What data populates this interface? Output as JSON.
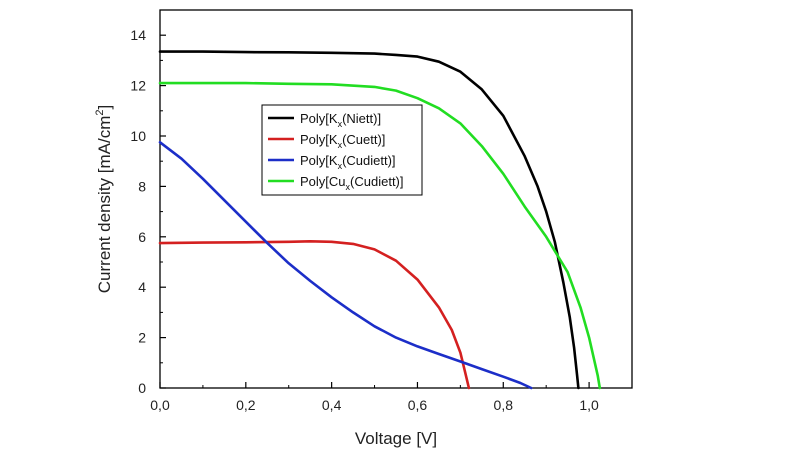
{
  "chart_data": {
    "type": "line",
    "xlabel": "Voltage [V]",
    "ylabel": "Current density [mA/cm²]",
    "xlim": [
      0.0,
      1.1
    ],
    "ylim": [
      0,
      15
    ],
    "x_ticks": [
      "0,0",
      "0,2",
      "0,4",
      "0,6",
      "0,8",
      "1,0"
    ],
    "y_ticks": [
      "0",
      "2",
      "4",
      "6",
      "8",
      "10",
      "12",
      "14"
    ],
    "grid": false,
    "legend_placement": "center-left",
    "series": [
      {
        "name": "Poly[Kx(Niett)]",
        "legend": {
          "pre": "Poly[K",
          "sub": "x",
          "post": "(Niett)]"
        },
        "color": "#000000",
        "points": [
          [
            0.0,
            13.35
          ],
          [
            0.1,
            13.35
          ],
          [
            0.2,
            13.33
          ],
          [
            0.3,
            13.32
          ],
          [
            0.4,
            13.3
          ],
          [
            0.5,
            13.27
          ],
          [
            0.55,
            13.22
          ],
          [
            0.6,
            13.15
          ],
          [
            0.65,
            12.95
          ],
          [
            0.7,
            12.55
          ],
          [
            0.75,
            11.85
          ],
          [
            0.8,
            10.8
          ],
          [
            0.85,
            9.2
          ],
          [
            0.88,
            8.0
          ],
          [
            0.9,
            7.0
          ],
          [
            0.92,
            5.8
          ],
          [
            0.94,
            4.2
          ],
          [
            0.955,
            2.8
          ],
          [
            0.965,
            1.6
          ],
          [
            0.972,
            0.5
          ],
          [
            0.975,
            0.0
          ]
        ]
      },
      {
        "name": "Poly[Kx(Cuett)]",
        "legend": {
          "pre": "Poly[K",
          "sub": "x",
          "post": "(Cuett)]"
        },
        "color": "#d42020",
        "points": [
          [
            0.0,
            5.75
          ],
          [
            0.1,
            5.77
          ],
          [
            0.2,
            5.78
          ],
          [
            0.3,
            5.8
          ],
          [
            0.35,
            5.82
          ],
          [
            0.4,
            5.8
          ],
          [
            0.45,
            5.72
          ],
          [
            0.5,
            5.5
          ],
          [
            0.55,
            5.05
          ],
          [
            0.6,
            4.3
          ],
          [
            0.65,
            3.2
          ],
          [
            0.68,
            2.3
          ],
          [
            0.7,
            1.4
          ],
          [
            0.71,
            0.7
          ],
          [
            0.72,
            0.0
          ]
        ]
      },
      {
        "name": "Poly[Kx(Cudiett)]",
        "legend": {
          "pre": "Poly[K",
          "sub": "x",
          "post": "(Cudiett)]"
        },
        "color": "#1c2ec8",
        "points": [
          [
            0.0,
            9.75
          ],
          [
            0.05,
            9.1
          ],
          [
            0.1,
            8.3
          ],
          [
            0.15,
            7.45
          ],
          [
            0.2,
            6.6
          ],
          [
            0.25,
            5.75
          ],
          [
            0.3,
            4.95
          ],
          [
            0.35,
            4.25
          ],
          [
            0.4,
            3.6
          ],
          [
            0.45,
            3.0
          ],
          [
            0.5,
            2.45
          ],
          [
            0.55,
            2.0
          ],
          [
            0.6,
            1.65
          ],
          [
            0.65,
            1.35
          ],
          [
            0.7,
            1.05
          ],
          [
            0.75,
            0.75
          ],
          [
            0.8,
            0.45
          ],
          [
            0.84,
            0.2
          ],
          [
            0.865,
            0.0
          ]
        ]
      },
      {
        "name": "Poly[Cux(Cudiett)]",
        "legend": {
          "pre": "Poly[Cu",
          "sub": "x",
          "post": "(Cudiett)]"
        },
        "color": "#22dd22",
        "points": [
          [
            0.0,
            12.1
          ],
          [
            0.1,
            12.1
          ],
          [
            0.2,
            12.1
          ],
          [
            0.3,
            12.07
          ],
          [
            0.4,
            12.05
          ],
          [
            0.5,
            11.95
          ],
          [
            0.55,
            11.8
          ],
          [
            0.6,
            11.5
          ],
          [
            0.65,
            11.1
          ],
          [
            0.7,
            10.5
          ],
          [
            0.75,
            9.6
          ],
          [
            0.8,
            8.5
          ],
          [
            0.85,
            7.2
          ],
          [
            0.9,
            6.0
          ],
          [
            0.95,
            4.6
          ],
          [
            0.98,
            3.2
          ],
          [
            1.0,
            2.0
          ],
          [
            1.02,
            0.5
          ],
          [
            1.025,
            0.0
          ]
        ]
      }
    ]
  }
}
